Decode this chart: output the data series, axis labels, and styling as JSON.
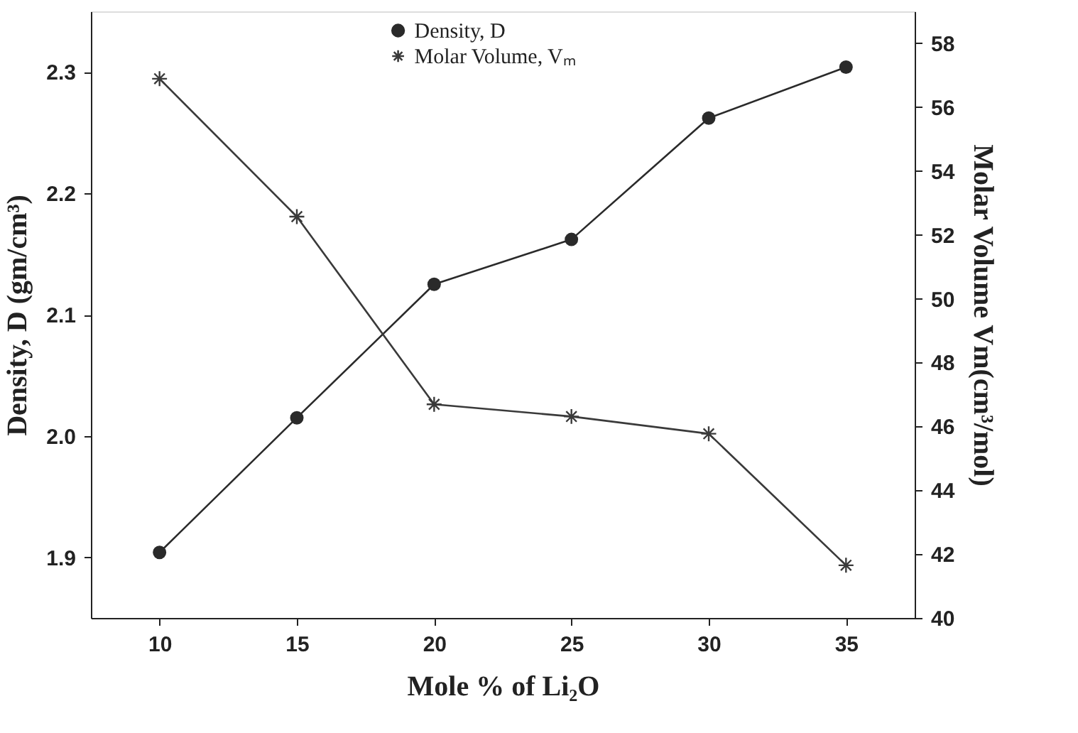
{
  "chart_data": {
    "type": "line",
    "xlabel": "Mole % of Li₂O",
    "ylabel": "Density, D (gm/cm³)",
    "y2label": "Molar Volume Vm(cm³/mol)",
    "x": [
      10,
      15,
      20,
      25,
      30,
      35
    ],
    "series": [
      {
        "name": "Density, D",
        "color": "#2a2a2a",
        "marker": "circle",
        "values": [
          1.904,
          2.015,
          2.125,
          2.162,
          2.262,
          2.304
        ]
      },
      {
        "name": "Molar Volume, Vₘ",
        "color": "#3a3a3a",
        "marker": "cross",
        "axis": "y2",
        "values": [
          56.89,
          52.57,
          46.69,
          46.31,
          45.77,
          41.65
        ]
      }
    ],
    "xlim": [
      7.5,
      37.5
    ],
    "xticks": [
      10,
      15,
      20,
      25,
      30,
      35
    ],
    "ylim": [
      1.85,
      2.35
    ],
    "yticks": [
      1.9,
      {
        "value": 2.0,
        "label": "2.0"
      },
      2.1,
      2.2,
      2.3
    ],
    "y2lim": [
      40,
      59
    ],
    "y2ticks": [
      40,
      42,
      44,
      46,
      48,
      50,
      52,
      54,
      56,
      58
    ],
    "grid": false,
    "legend": "top",
    "line_style": "solid"
  }
}
